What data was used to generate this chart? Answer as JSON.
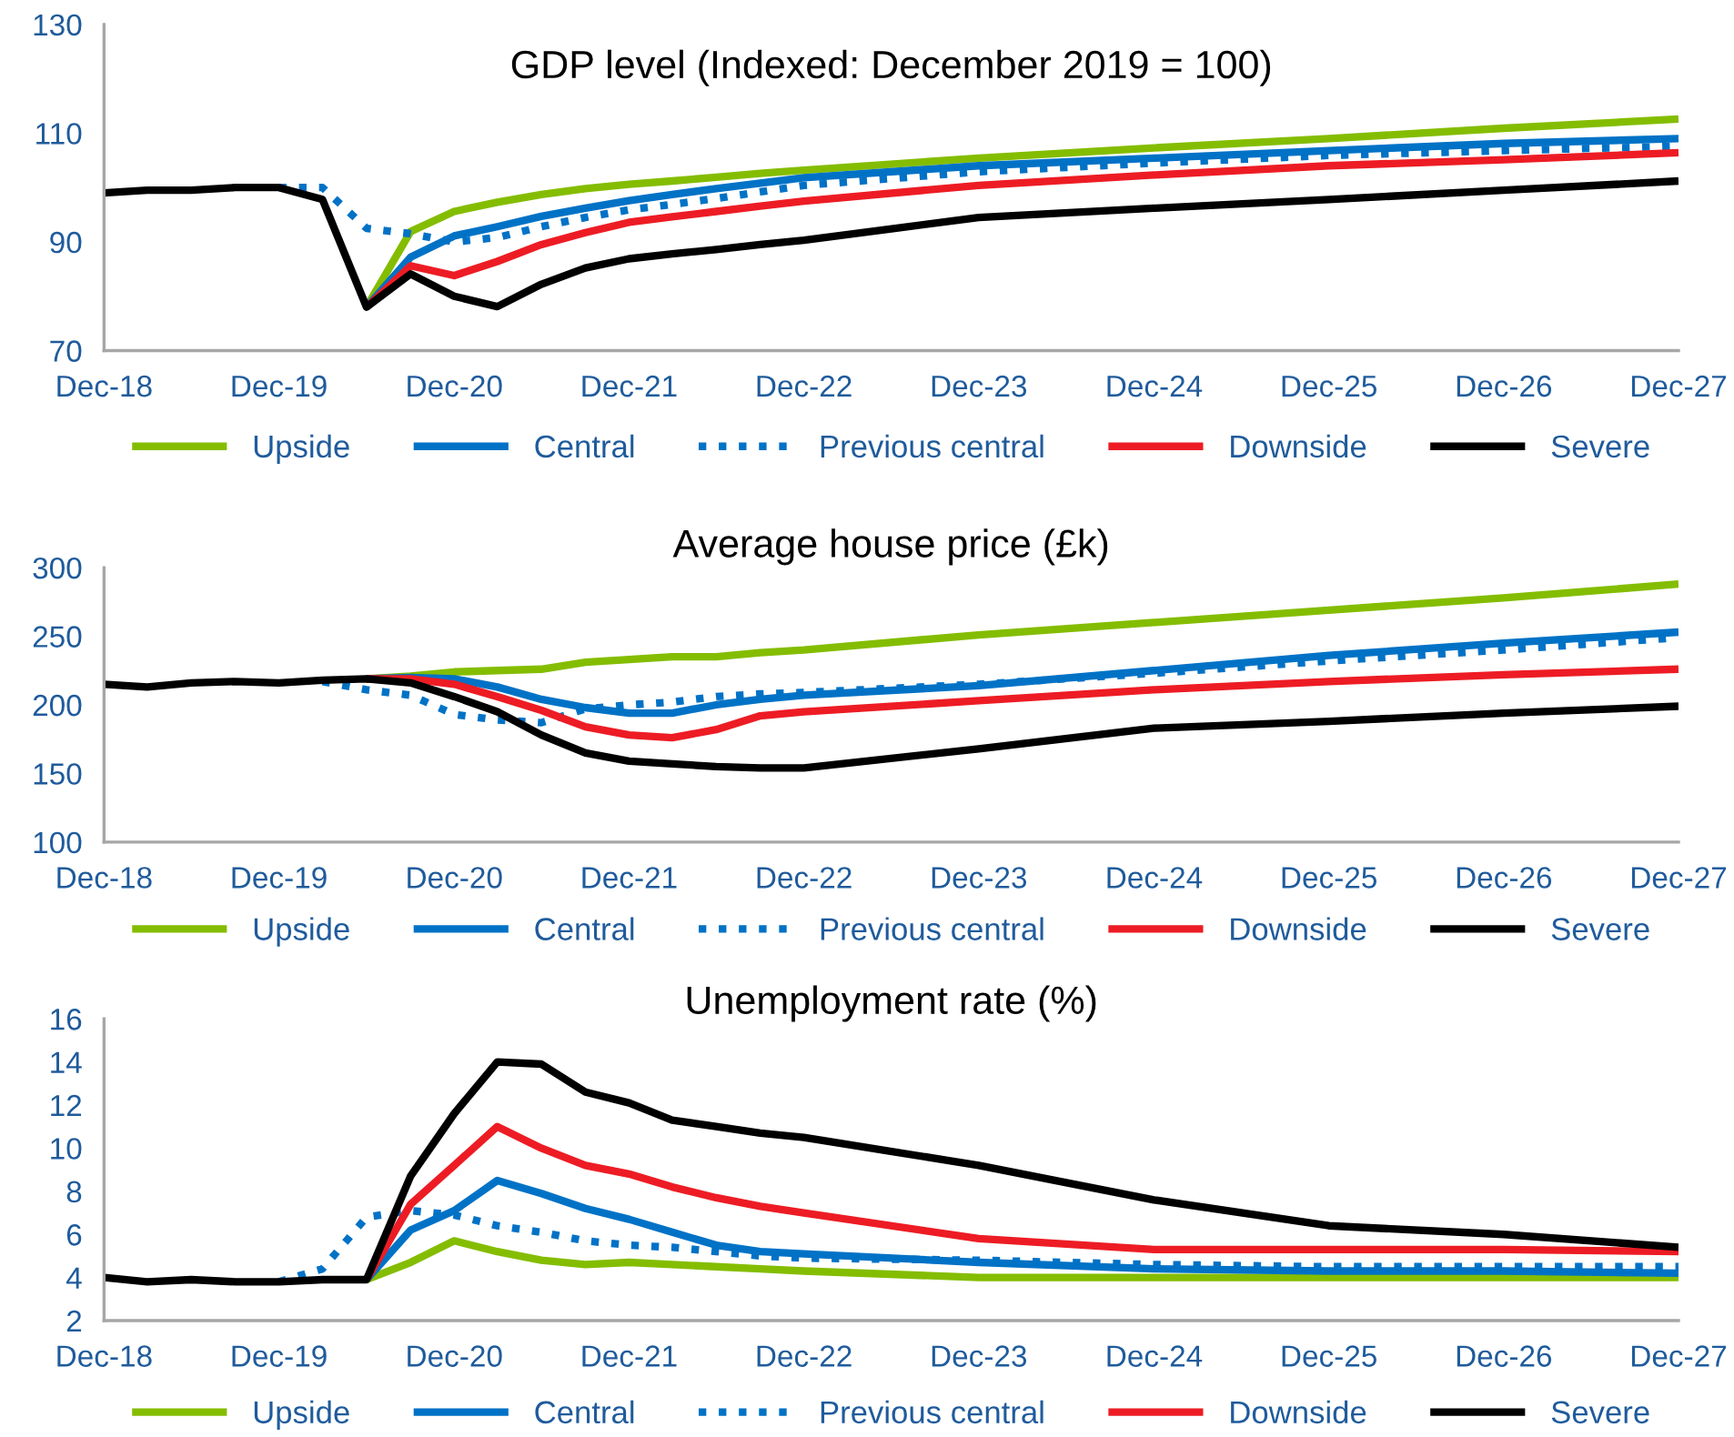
{
  "chart_data": [
    {
      "type": "line",
      "title": "GDP level (Indexed: December 2019 = 100)",
      "legend": "bottom",
      "grid": false,
      "x": [
        "2018-12",
        "2019-03",
        "2019-06",
        "2019-09",
        "2019-12",
        "2020-03",
        "2020-06",
        "2020-09",
        "2020-12",
        "2021-03",
        "2021-06",
        "2021-09",
        "2021-12",
        "2022-03",
        "2022-06",
        "2022-09",
        "2022-12",
        "2023-12",
        "2024-12",
        "2025-12",
        "2026-12",
        "2027-12"
      ],
      "xlim": [
        "2018-12",
        "2027-12"
      ],
      "xticks": [
        {
          "value": "2018-12",
          "label": "Dec-18"
        },
        {
          "value": "2019-12",
          "label": "Dec-19"
        },
        {
          "value": "2020-12",
          "label": "Dec-20"
        },
        {
          "value": "2021-12",
          "label": "Dec-21"
        },
        {
          "value": "2022-12",
          "label": "Dec-22"
        },
        {
          "value": "2023-12",
          "label": "Dec-23"
        },
        {
          "value": "2024-12",
          "label": "Dec-24"
        },
        {
          "value": "2025-12",
          "label": "Dec-25"
        },
        {
          "value": "2026-12",
          "label": "Dec-26"
        },
        {
          "value": "2027-12",
          "label": "Dec-27"
        }
      ],
      "ylim": [
        70,
        130
      ],
      "yticks": [
        70,
        90,
        110,
        130
      ],
      "series": [
        {
          "name": "Upside",
          "color": "#84bd00",
          "line_style": "solid",
          "values": [
            null,
            null,
            null,
            null,
            null,
            null,
            78,
            91.9,
            95.6,
            97.3,
            98.7,
            99.8,
            100.6,
            101.2,
            101.9,
            102.6,
            103.2,
            105.4,
            107.3,
            109,
            110.9,
            112.6
          ]
        },
        {
          "name": "Central",
          "color": "#0072c6",
          "line_style": "solid",
          "values": [
            null,
            null,
            null,
            null,
            null,
            null,
            78,
            87.2,
            91.1,
            92.8,
            94.7,
            96.2,
            97.6,
            98.7,
            99.8,
            100.8,
            101.8,
            104,
            105.4,
            106.8,
            108.1,
            109
          ]
        },
        {
          "name": "Previous central",
          "color": "#0072c6",
          "line_style": "dotted",
          "values": [
            null,
            null,
            null,
            null,
            100,
            100,
            92.5,
            91.5,
            90,
            90.8,
            92.8,
            94.5,
            95.9,
            96.9,
            98,
            99.2,
            100.4,
            102.9,
            104.5,
            105.9,
            106.8,
            107.6
          ]
        },
        {
          "name": "Downside",
          "color": "#ed1c24",
          "line_style": "solid",
          "values": [
            null,
            null,
            null,
            null,
            null,
            null,
            78,
            85.6,
            83.8,
            86.4,
            89.5,
            91.7,
            93.6,
            94.6,
            95.6,
            96.6,
            97.5,
            100.4,
            102.3,
            104,
            105.1,
            106.4
          ]
        },
        {
          "name": "Severe",
          "color": "#000000",
          "line_style": "solid",
          "values": [
            99,
            99.5,
            99.5,
            100,
            100,
            97.8,
            78,
            84.1,
            80,
            78.1,
            82.2,
            85.2,
            86.9,
            87.8,
            88.6,
            89.5,
            90.3,
            94.5,
            96.2,
            97.8,
            99.5,
            101.2
          ]
        }
      ]
    },
    {
      "type": "line",
      "title": "Average house price (£k)",
      "legend": "bottom",
      "grid": false,
      "x": [
        "2018-12",
        "2019-03",
        "2019-06",
        "2019-09",
        "2019-12",
        "2020-03",
        "2020-06",
        "2020-09",
        "2020-12",
        "2021-03",
        "2021-06",
        "2021-09",
        "2021-12",
        "2022-03",
        "2022-06",
        "2022-09",
        "2022-12",
        "2023-12",
        "2024-12",
        "2025-12",
        "2026-12",
        "2027-12"
      ],
      "xlim": [
        "2018-12",
        "2027-12"
      ],
      "xticks": [
        {
          "value": "2018-12",
          "label": "Dec-18"
        },
        {
          "value": "2019-12",
          "label": "Dec-19"
        },
        {
          "value": "2020-12",
          "label": "Dec-20"
        },
        {
          "value": "2021-12",
          "label": "Dec-21"
        },
        {
          "value": "2022-12",
          "label": "Dec-22"
        },
        {
          "value": "2023-12",
          "label": "Dec-23"
        },
        {
          "value": "2024-12",
          "label": "Dec-24"
        },
        {
          "value": "2025-12",
          "label": "Dec-25"
        },
        {
          "value": "2026-12",
          "label": "Dec-26"
        },
        {
          "value": "2027-12",
          "label": "Dec-27"
        }
      ],
      "ylim": [
        100,
        300
      ],
      "yticks": [
        100,
        150,
        200,
        250,
        300
      ],
      "series": [
        {
          "name": "Upside",
          "color": "#84bd00",
          "line_style": "solid",
          "values": [
            null,
            null,
            null,
            null,
            null,
            null,
            219,
            221,
            224,
            225,
            226,
            231,
            233,
            235,
            235,
            238,
            240,
            251,
            260,
            269,
            278,
            288
          ]
        },
        {
          "name": "Central",
          "color": "#0072c6",
          "line_style": "solid",
          "values": [
            null,
            null,
            null,
            null,
            null,
            null,
            219,
            220,
            219,
            213,
            204,
            198,
            194,
            194,
            200,
            204,
            207,
            214,
            225,
            236,
            245,
            253
          ]
        },
        {
          "name": "Previous central",
          "color": "#0072c6",
          "line_style": "dotted",
          "values": [
            null,
            null,
            null,
            null,
            null,
            217,
            211,
            207,
            193,
            189,
            187,
            197,
            200,
            202,
            206,
            208,
            209,
            215,
            223,
            232,
            240,
            249
          ]
        },
        {
          "name": "Downside",
          "color": "#ed1c24",
          "line_style": "solid",
          "values": [
            null,
            null,
            null,
            null,
            null,
            null,
            219,
            219,
            215,
            206,
            196,
            184,
            178,
            176,
            182,
            192,
            195,
            203,
            211,
            217,
            222,
            226
          ]
        },
        {
          "name": "Severe",
          "color": "#000000",
          "line_style": "solid",
          "values": [
            215,
            213,
            216,
            217,
            216,
            218,
            219,
            216,
            206,
            195,
            178,
            165,
            159,
            157,
            155,
            154,
            154,
            168,
            183,
            188,
            194,
            199
          ]
        }
      ]
    },
    {
      "type": "line",
      "title": "Unemployment rate (%)",
      "legend": "bottom",
      "grid": false,
      "x": [
        "2018-12",
        "2019-03",
        "2019-06",
        "2019-09",
        "2019-12",
        "2020-03",
        "2020-06",
        "2020-09",
        "2020-12",
        "2021-03",
        "2021-06",
        "2021-09",
        "2021-12",
        "2022-03",
        "2022-06",
        "2022-09",
        "2022-12",
        "2023-12",
        "2024-12",
        "2025-12",
        "2026-12",
        "2027-12"
      ],
      "xlim": [
        "2018-12",
        "2027-12"
      ],
      "xticks": [
        {
          "value": "2018-12",
          "label": "Dec-18"
        },
        {
          "value": "2019-12",
          "label": "Dec-19"
        },
        {
          "value": "2020-12",
          "label": "Dec-20"
        },
        {
          "value": "2021-12",
          "label": "Dec-21"
        },
        {
          "value": "2022-12",
          "label": "Dec-22"
        },
        {
          "value": "2023-12",
          "label": "Dec-23"
        },
        {
          "value": "2024-12",
          "label": "Dec-24"
        },
        {
          "value": "2025-12",
          "label": "Dec-25"
        },
        {
          "value": "2026-12",
          "label": "Dec-26"
        },
        {
          "value": "2027-12",
          "label": "Dec-27"
        }
      ],
      "ylim": [
        2,
        16
      ],
      "yticks": [
        2,
        4,
        6,
        8,
        10,
        12,
        14,
        16
      ],
      "series": [
        {
          "name": "Upside",
          "color": "#84bd00",
          "line_style": "solid",
          "values": [
            null,
            null,
            null,
            null,
            null,
            null,
            3.9,
            4.7,
            5.7,
            5.2,
            4.8,
            4.6,
            4.7,
            4.6,
            4.5,
            4.4,
            4.3,
            4.0,
            4.0,
            4.0,
            4.0,
            4.0
          ]
        },
        {
          "name": "Central",
          "color": "#0072c6",
          "line_style": "solid",
          "values": [
            null,
            null,
            null,
            null,
            null,
            null,
            3.9,
            6.2,
            7.1,
            8.5,
            7.9,
            7.2,
            6.7,
            6.1,
            5.5,
            5.2,
            5.1,
            4.7,
            4.4,
            4.3,
            4.3,
            4.2
          ]
        },
        {
          "name": "Previous central",
          "color": "#0072c6",
          "line_style": "dotted",
          "values": [
            null,
            null,
            null,
            null,
            3.8,
            4.4,
            6.8,
            7.1,
            6.9,
            6.4,
            6.1,
            5.7,
            5.5,
            5.4,
            5.2,
            5.0,
            4.9,
            4.8,
            4.6,
            4.5,
            4.5,
            4.5
          ]
        },
        {
          "name": "Downside",
          "color": "#ed1c24",
          "line_style": "solid",
          "values": [
            null,
            null,
            null,
            null,
            null,
            null,
            3.9,
            7.4,
            9.2,
            11.0,
            10.0,
            9.2,
            8.8,
            8.2,
            7.7,
            7.3,
            7.0,
            5.8,
            5.3,
            5.3,
            5.3,
            5.2
          ]
        },
        {
          "name": "Severe",
          "color": "#000000",
          "line_style": "solid",
          "values": [
            4.0,
            3.8,
            3.9,
            3.8,
            3.8,
            3.9,
            3.9,
            8.7,
            11.6,
            14.0,
            13.9,
            12.6,
            12.1,
            11.3,
            11.0,
            10.7,
            10.5,
            9.2,
            7.6,
            6.4,
            6.0,
            5.4
          ]
        }
      ]
    }
  ]
}
